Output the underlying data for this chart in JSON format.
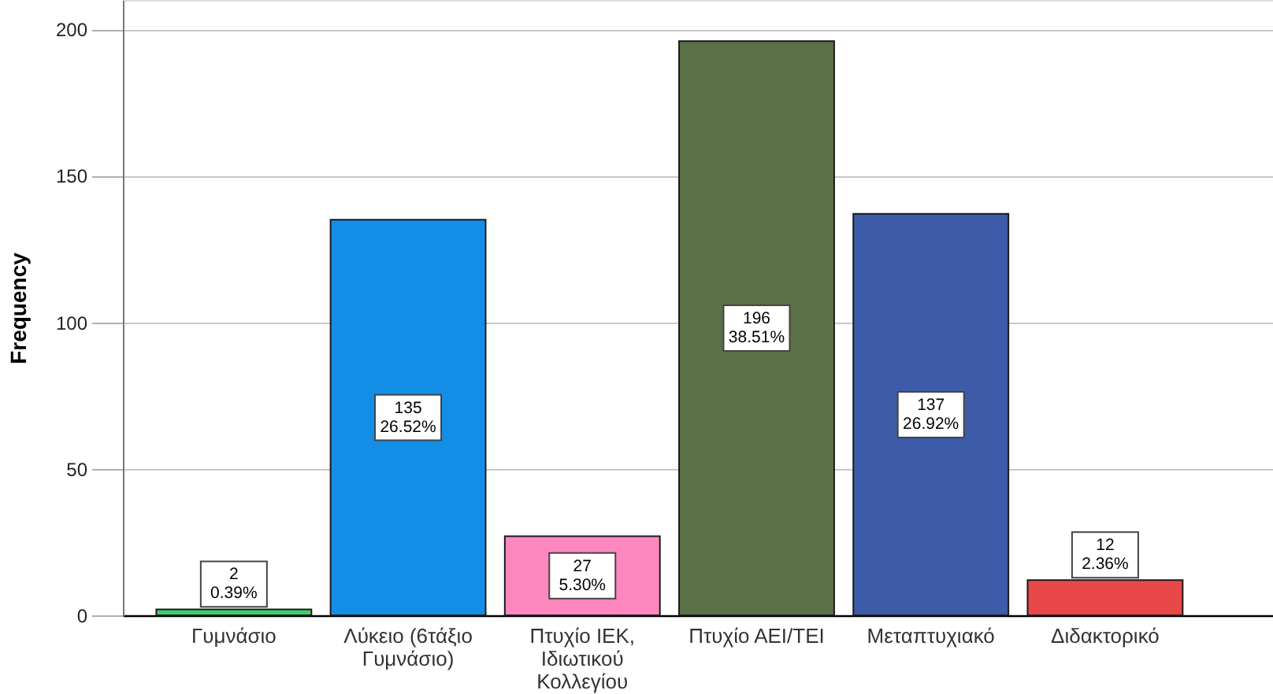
{
  "chart_data": {
    "type": "bar",
    "ylabel": "Frequency",
    "categories": [
      "Γυμνάσιο",
      "Λύκειο (6τάξιο Γυμνάσιο)",
      "Πτυχίο ΙΕΚ, Ιδιωτικού Κολλεγίου",
      "Πτυχίο ΑΕΙ/ΤΕΙ",
      "Μεταπτυχιακό",
      "Διδακτορικό"
    ],
    "values": [
      2,
      135,
      27,
      196,
      137,
      12
    ],
    "colors": [
      "#3ccf6e",
      "#138ee6",
      "#fe87bd",
      "#5c7048",
      "#3e5ba9",
      "#e94848"
    ],
    "value_labels": [
      "2\n0.39%",
      "135\n26.52%",
      "27\n5.30%",
      "196\n38.51%",
      "137\n26.92%",
      "12\n2.36%"
    ],
    "ylim": [
      0,
      210
    ],
    "yticks": [
      0,
      50,
      100,
      150,
      200
    ],
    "grid": "y"
  }
}
